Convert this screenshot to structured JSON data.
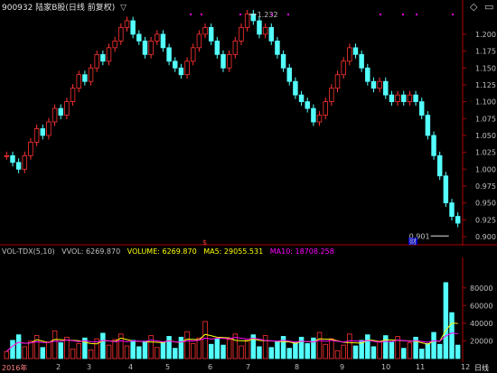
{
  "header": {
    "symbol": "900932",
    "name": "陆家B股(日线 前复权)",
    "menu_glyph": "▽",
    "icons": [
      "settings-icon",
      "expand-icon"
    ]
  },
  "price_panel": {
    "max_label": "1.232",
    "min_label": "0.901",
    "marker_label": "财",
    "y_ticks": [
      "1.200",
      "1.175",
      "1.150",
      "1.125",
      "1.100",
      "1.075",
      "1.050",
      "1.025",
      "1.000",
      "0.975",
      "0.950",
      "0.925",
      "0.900"
    ]
  },
  "volume_panel": {
    "indicator": "VOL-TDX(5,10)",
    "vvol": "VVOL: 6269.870",
    "volume": "VOLUME: 6269.870",
    "ma5": "MA5: 29055.531",
    "ma10": "MA10: 18708.258",
    "marker": "$",
    "y_ticks": [
      "80000",
      "60000",
      "40000",
      "20000"
    ],
    "colors": {
      "volume": "#ffff00",
      "ma5": "#ffff00",
      "ma10": "#ff00ff",
      "up": "#ff3232",
      "down": "#54ffff"
    }
  },
  "bottom_bar": {
    "year": "2016年",
    "months": [
      "2",
      "3",
      "4",
      "5",
      "6",
      "7",
      "8",
      "9",
      "10",
      "11",
      "12"
    ],
    "period": "日线",
    "end_label": "12"
  },
  "chart_data": {
    "type": "candlestick",
    "title": "900932 陆家B股(日线 前复权)",
    "price_range": [
      0.9,
      1.232
    ],
    "max": 1.232,
    "min": 0.901,
    "close_approx": [
      1.02,
      1.01,
      1.0,
      1.02,
      1.04,
      1.06,
      1.05,
      1.07,
      1.09,
      1.08,
      1.1,
      1.12,
      1.14,
      1.13,
      1.15,
      1.17,
      1.16,
      1.18,
      1.19,
      1.21,
      1.22,
      1.2,
      1.19,
      1.17,
      1.19,
      1.2,
      1.18,
      1.16,
      1.15,
      1.14,
      1.16,
      1.18,
      1.2,
      1.21,
      1.19,
      1.17,
      1.15,
      1.17,
      1.19,
      1.21,
      1.23,
      1.22,
      1.2,
      1.21,
      1.19,
      1.17,
      1.15,
      1.13,
      1.11,
      1.1,
      1.09,
      1.07,
      1.08,
      1.1,
      1.12,
      1.14,
      1.16,
      1.18,
      1.17,
      1.15,
      1.13,
      1.12,
      1.13,
      1.11,
      1.1,
      1.11,
      1.1,
      1.11,
      1.1,
      1.08,
      1.05,
      1.02,
      0.99,
      0.95,
      0.93,
      0.92
    ],
    "volume_range": [
      0,
      90000
    ]
  }
}
